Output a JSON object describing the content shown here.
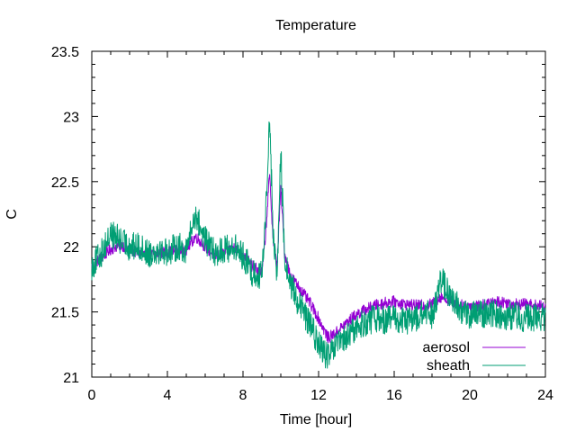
{
  "chart_data": {
    "type": "line",
    "title": "Temperature",
    "xlabel": "Time [hour]",
    "ylabel": "C",
    "xlim": [
      0,
      24
    ],
    "ylim": [
      21,
      23.5
    ],
    "xticks": [
      0,
      4,
      8,
      12,
      16,
      20,
      24
    ],
    "yticks": [
      21,
      21.5,
      22,
      22.5,
      23,
      23.5
    ],
    "grid": false,
    "legend_position": "bottom-right",
    "series": [
      {
        "name": "aerosol",
        "color": "#9400d3",
        "x": [
          0,
          0.5,
          1,
          1.5,
          2,
          2.5,
          3,
          3.5,
          4,
          4.5,
          5,
          5.5,
          6,
          6.5,
          7,
          7.5,
          8,
          8.5,
          9,
          9.2,
          9.4,
          9.6,
          9.8,
          10,
          10.2,
          10.5,
          11,
          11.5,
          12,
          12.5,
          13,
          13.5,
          14,
          14.5,
          15,
          15.5,
          16,
          16.5,
          17,
          17.5,
          18,
          18.5,
          19,
          19.5,
          20,
          20.5,
          21,
          21.5,
          22,
          22.5,
          23,
          23.5,
          24
        ],
        "y": [
          21.85,
          21.92,
          21.98,
          22.02,
          21.98,
          21.95,
          21.93,
          21.95,
          21.96,
          21.97,
          21.98,
          22.08,
          22.0,
          21.93,
          21.95,
          22.0,
          21.95,
          21.85,
          21.8,
          22.1,
          22.55,
          22.05,
          21.85,
          22.45,
          21.95,
          21.78,
          21.68,
          21.58,
          21.45,
          21.3,
          21.35,
          21.42,
          21.48,
          21.52,
          21.55,
          21.57,
          21.58,
          21.56,
          21.55,
          21.55,
          21.56,
          21.62,
          21.58,
          21.55,
          21.55,
          21.55,
          21.56,
          21.58,
          21.57,
          21.56,
          21.56,
          21.55,
          21.54
        ]
      },
      {
        "name": "sheath",
        "color": "#009e73",
        "x": [
          0,
          0.5,
          1,
          1.5,
          2,
          2.5,
          3,
          3.5,
          4,
          4.5,
          5,
          5.5,
          6,
          6.5,
          7,
          7.5,
          8,
          8.5,
          9,
          9.2,
          9.4,
          9.6,
          9.8,
          10,
          10.2,
          10.5,
          11,
          11.5,
          12,
          12.5,
          13,
          13.5,
          14,
          14.5,
          15,
          15.5,
          16,
          16.5,
          17,
          17.5,
          18,
          18.5,
          19,
          19.5,
          20,
          20.5,
          21,
          21.5,
          22,
          22.5,
          23,
          23.5,
          24
        ],
        "y": [
          21.85,
          21.95,
          22.1,
          22.05,
          22.0,
          22.0,
          21.95,
          21.98,
          21.96,
          22.0,
          21.98,
          22.25,
          22.05,
          21.95,
          21.98,
          22.0,
          21.93,
          21.8,
          21.78,
          22.25,
          23.0,
          22.1,
          21.75,
          22.75,
          21.9,
          21.72,
          21.55,
          21.42,
          21.25,
          21.15,
          21.25,
          21.3,
          21.38,
          21.42,
          21.45,
          21.44,
          21.45,
          21.43,
          21.44,
          21.48,
          21.48,
          21.75,
          21.6,
          21.52,
          21.47,
          21.48,
          21.5,
          21.48,
          21.47,
          21.47,
          21.45,
          21.46,
          21.46
        ]
      }
    ]
  }
}
